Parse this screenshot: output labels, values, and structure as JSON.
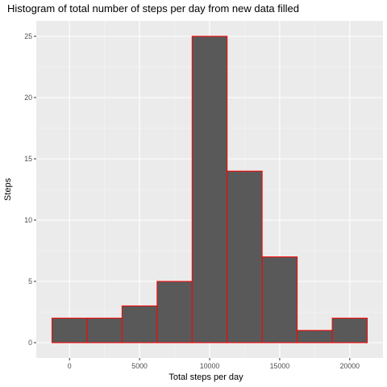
{
  "chart_data": {
    "type": "bar",
    "title": "Histogram of total number of steps per day from new data filled",
    "xlabel": "Total steps per day",
    "ylabel": "Steps",
    "bins": [
      {
        "x_start": -1250,
        "x_end": 1250,
        "count": 2
      },
      {
        "x_start": 1250,
        "x_end": 3750,
        "count": 2
      },
      {
        "x_start": 3750,
        "x_end": 6250,
        "count": 3
      },
      {
        "x_start": 6250,
        "x_end": 8750,
        "count": 5
      },
      {
        "x_start": 8750,
        "x_end": 11250,
        "count": 25
      },
      {
        "x_start": 11250,
        "x_end": 13750,
        "count": 14
      },
      {
        "x_start": 13750,
        "x_end": 16250,
        "count": 7
      },
      {
        "x_start": 16250,
        "x_end": 18750,
        "count": 1
      },
      {
        "x_start": 18750,
        "x_end": 21250,
        "count": 2
      }
    ],
    "xlim": [
      -2370,
      22370
    ],
    "ylim": [
      -1.25,
      26.25
    ],
    "x_ticks": [
      {
        "value": 0,
        "label": "0"
      },
      {
        "value": 5000,
        "label": "5000"
      },
      {
        "value": 10000,
        "label": "10000"
      },
      {
        "value": 15000,
        "label": "15000"
      },
      {
        "value": 20000,
        "label": "20000"
      }
    ],
    "y_ticks": [
      {
        "value": 0,
        "label": "0"
      },
      {
        "value": 5,
        "label": "5"
      },
      {
        "value": 10,
        "label": "10"
      },
      {
        "value": 15,
        "label": "15"
      },
      {
        "value": 20,
        "label": "20"
      },
      {
        "value": 25,
        "label": "25"
      }
    ],
    "grid": true,
    "legend": "none",
    "colors": {
      "bar_fill": "#595959",
      "bar_outline": "#ff0000",
      "panel_background": "#ebebeb",
      "grid_major": "#ffffff",
      "grid_minor": "#f5f5f5",
      "tick_text": "#4d4d4d"
    }
  }
}
